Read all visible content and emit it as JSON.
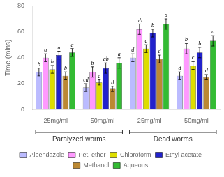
{
  "chart_data": {
    "type": "bar",
    "ylabel": "Time (mins)",
    "categories": [
      "25mg/ml",
      "50mg/ml",
      "25mg/ml",
      "50mg/ml"
    ],
    "section_labels": [
      "Paralyzed worms",
      "Dead worms"
    ],
    "series": [
      {
        "name": "Albendazole",
        "color": "#bbbbff",
        "values": [
          29,
          17,
          40,
          26
        ],
        "errors": [
          3,
          3,
          3,
          3
        ],
        "annotations": [
          "b",
          "cd",
          "d",
          "d"
        ]
      },
      {
        "name": "Pet. ether",
        "color": "#ff99ff",
        "values": [
          40,
          29,
          62,
          47
        ],
        "errors": [
          3,
          4,
          4,
          4
        ],
        "annotations": [
          "a",
          "b",
          "ab",
          "b"
        ]
      },
      {
        "name": "Chloroform",
        "color": "#dddd00",
        "values": [
          31,
          21,
          47,
          34
        ],
        "errors": [
          3,
          2,
          3,
          3
        ],
        "annotations": [
          "b",
          "c",
          "c",
          "c"
        ]
      },
      {
        "name": "Ethyl acetate",
        "color": "#2222cc",
        "values": [
          42,
          32,
          59,
          44
        ],
        "errors": [
          3,
          4,
          3,
          4
        ],
        "annotations": [
          "a",
          "ab",
          "b",
          "b"
        ]
      },
      {
        "name": "Methanol",
        "color": "#bb8833",
        "values": [
          26,
          16,
          39,
          25
        ],
        "errors": [
          3,
          2,
          3,
          2
        ],
        "annotations": [
          "b",
          "d",
          "d",
          "d"
        ]
      },
      {
        "name": "Aqueous",
        "color": "#33bb33",
        "values": [
          44,
          36,
          66,
          53
        ],
        "errors": [
          3,
          4,
          4,
          4
        ],
        "annotations": [
          "a",
          "a",
          "a",
          "a"
        ]
      }
    ],
    "ylim": [
      0,
      80
    ],
    "yticks": [
      0,
      20,
      40,
      60,
      80
    ],
    "grid": false,
    "legend": "bottom"
  }
}
